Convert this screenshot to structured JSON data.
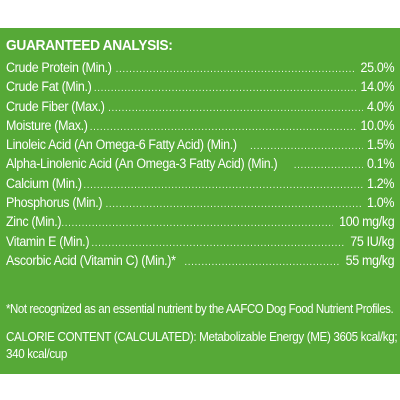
{
  "analysis": {
    "heading": "GUARANTEED ANALYSIS:",
    "rows": [
      {
        "name": "Crude Protein (Min.)",
        "value": "25.0%"
      },
      {
        "name": "Crude Fat (Min.)",
        "value": "14.0%"
      },
      {
        "name": "Crude Fiber (Max.)",
        "value": "4.0%"
      },
      {
        "name": "Moisture (Max.)",
        "value": "10.0%"
      },
      {
        "name": "Linoleic Acid (An Omega-6 Fatty Acid) (Min.)",
        "value": "1.5%"
      },
      {
        "name": "Alpha-Linolenic Acid (An Omega-3 Fatty Acid) (Min.)",
        "value": "0.1%"
      },
      {
        "name": "Calcium (Min.)",
        "value": "1.2%"
      },
      {
        "name": "Phosphorus (Min.)",
        "value": "1.0%"
      },
      {
        "name": "Zinc (Min.)",
        "value": "100 mg/kg"
      },
      {
        "name": "Vitamin E (Min.)",
        "value": "75 IU/kg"
      },
      {
        "name": "Ascorbic Acid (Vitamin C) (Min.)*",
        "value": "55 mg/kg"
      }
    ],
    "footnote": "*Not recognized as an essential nutrient by the AAFCO Dog Food Nutrient Profiles.",
    "calorie_line1": "CALORIE CONTENT (CALCULATED): Metabolizable Energy (ME) 3605 kcal/kg;",
    "calorie_line2": "340 kcal/cup"
  },
  "colors": {
    "panel_background": "#56a937",
    "text": "#ffffff"
  }
}
